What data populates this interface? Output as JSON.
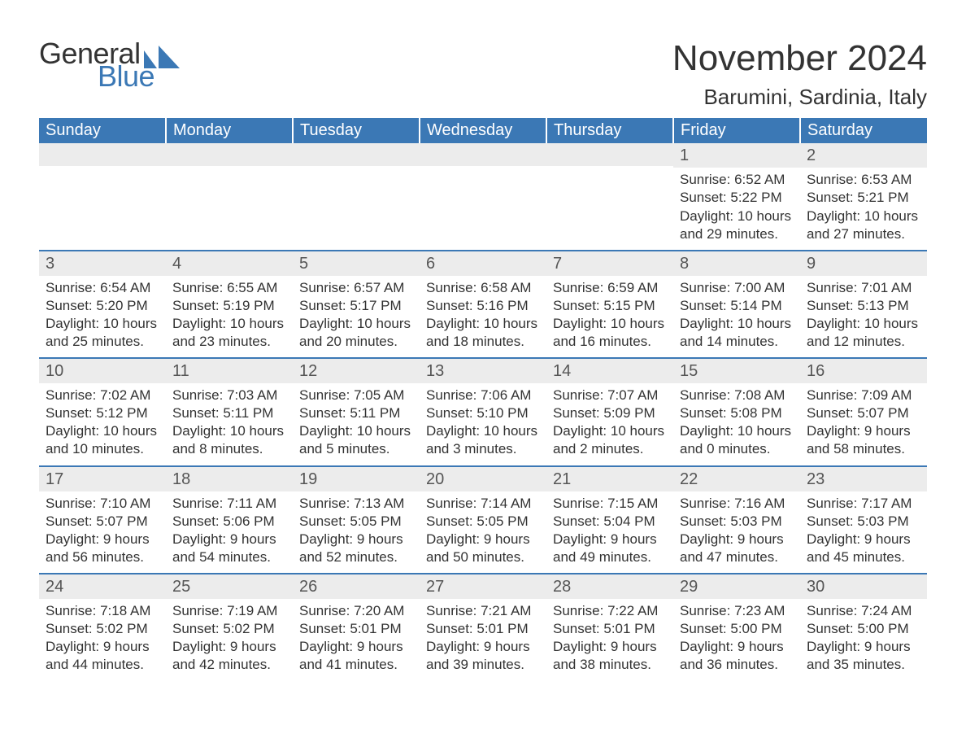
{
  "brand": {
    "word1": "General",
    "word2": "Blue",
    "text_color": "#333333",
    "accent_color": "#3b78b5"
  },
  "title": {
    "month": "November 2024",
    "location": "Barumini, Sardinia, Italy",
    "month_fontsize": 44,
    "location_fontsize": 26
  },
  "calendar": {
    "header_bg": "#3b78b5",
    "header_fg": "#ffffff",
    "rule_color": "#3b78b5",
    "daynum_bg": "#ececec",
    "body_fontsize": 17,
    "columns": [
      "Sunday",
      "Monday",
      "Tuesday",
      "Wednesday",
      "Thursday",
      "Friday",
      "Saturday"
    ],
    "first_weekday_index": 5,
    "days": [
      {
        "n": 1,
        "sunrise": "6:52 AM",
        "sunset": "5:22 PM",
        "daylight": "10 hours and 29 minutes."
      },
      {
        "n": 2,
        "sunrise": "6:53 AM",
        "sunset": "5:21 PM",
        "daylight": "10 hours and 27 minutes."
      },
      {
        "n": 3,
        "sunrise": "6:54 AM",
        "sunset": "5:20 PM",
        "daylight": "10 hours and 25 minutes."
      },
      {
        "n": 4,
        "sunrise": "6:55 AM",
        "sunset": "5:19 PM",
        "daylight": "10 hours and 23 minutes."
      },
      {
        "n": 5,
        "sunrise": "6:57 AM",
        "sunset": "5:17 PM",
        "daylight": "10 hours and 20 minutes."
      },
      {
        "n": 6,
        "sunrise": "6:58 AM",
        "sunset": "5:16 PM",
        "daylight": "10 hours and 18 minutes."
      },
      {
        "n": 7,
        "sunrise": "6:59 AM",
        "sunset": "5:15 PM",
        "daylight": "10 hours and 16 minutes."
      },
      {
        "n": 8,
        "sunrise": "7:00 AM",
        "sunset": "5:14 PM",
        "daylight": "10 hours and 14 minutes."
      },
      {
        "n": 9,
        "sunrise": "7:01 AM",
        "sunset": "5:13 PM",
        "daylight": "10 hours and 12 minutes."
      },
      {
        "n": 10,
        "sunrise": "7:02 AM",
        "sunset": "5:12 PM",
        "daylight": "10 hours and 10 minutes."
      },
      {
        "n": 11,
        "sunrise": "7:03 AM",
        "sunset": "5:11 PM",
        "daylight": "10 hours and 8 minutes."
      },
      {
        "n": 12,
        "sunrise": "7:05 AM",
        "sunset": "5:11 PM",
        "daylight": "10 hours and 5 minutes."
      },
      {
        "n": 13,
        "sunrise": "7:06 AM",
        "sunset": "5:10 PM",
        "daylight": "10 hours and 3 minutes."
      },
      {
        "n": 14,
        "sunrise": "7:07 AM",
        "sunset": "5:09 PM",
        "daylight": "10 hours and 2 minutes."
      },
      {
        "n": 15,
        "sunrise": "7:08 AM",
        "sunset": "5:08 PM",
        "daylight": "10 hours and 0 minutes."
      },
      {
        "n": 16,
        "sunrise": "7:09 AM",
        "sunset": "5:07 PM",
        "daylight": "9 hours and 58 minutes."
      },
      {
        "n": 17,
        "sunrise": "7:10 AM",
        "sunset": "5:07 PM",
        "daylight": "9 hours and 56 minutes."
      },
      {
        "n": 18,
        "sunrise": "7:11 AM",
        "sunset": "5:06 PM",
        "daylight": "9 hours and 54 minutes."
      },
      {
        "n": 19,
        "sunrise": "7:13 AM",
        "sunset": "5:05 PM",
        "daylight": "9 hours and 52 minutes."
      },
      {
        "n": 20,
        "sunrise": "7:14 AM",
        "sunset": "5:05 PM",
        "daylight": "9 hours and 50 minutes."
      },
      {
        "n": 21,
        "sunrise": "7:15 AM",
        "sunset": "5:04 PM",
        "daylight": "9 hours and 49 minutes."
      },
      {
        "n": 22,
        "sunrise": "7:16 AM",
        "sunset": "5:03 PM",
        "daylight": "9 hours and 47 minutes."
      },
      {
        "n": 23,
        "sunrise": "7:17 AM",
        "sunset": "5:03 PM",
        "daylight": "9 hours and 45 minutes."
      },
      {
        "n": 24,
        "sunrise": "7:18 AM",
        "sunset": "5:02 PM",
        "daylight": "9 hours and 44 minutes."
      },
      {
        "n": 25,
        "sunrise": "7:19 AM",
        "sunset": "5:02 PM",
        "daylight": "9 hours and 42 minutes."
      },
      {
        "n": 26,
        "sunrise": "7:20 AM",
        "sunset": "5:01 PM",
        "daylight": "9 hours and 41 minutes."
      },
      {
        "n": 27,
        "sunrise": "7:21 AM",
        "sunset": "5:01 PM",
        "daylight": "9 hours and 39 minutes."
      },
      {
        "n": 28,
        "sunrise": "7:22 AM",
        "sunset": "5:01 PM",
        "daylight": "9 hours and 38 minutes."
      },
      {
        "n": 29,
        "sunrise": "7:23 AM",
        "sunset": "5:00 PM",
        "daylight": "9 hours and 36 minutes."
      },
      {
        "n": 30,
        "sunrise": "7:24 AM",
        "sunset": "5:00 PM",
        "daylight": "9 hours and 35 minutes."
      }
    ],
    "labels": {
      "sunrise": "Sunrise: ",
      "sunset": "Sunset: ",
      "daylight": "Daylight: "
    }
  }
}
